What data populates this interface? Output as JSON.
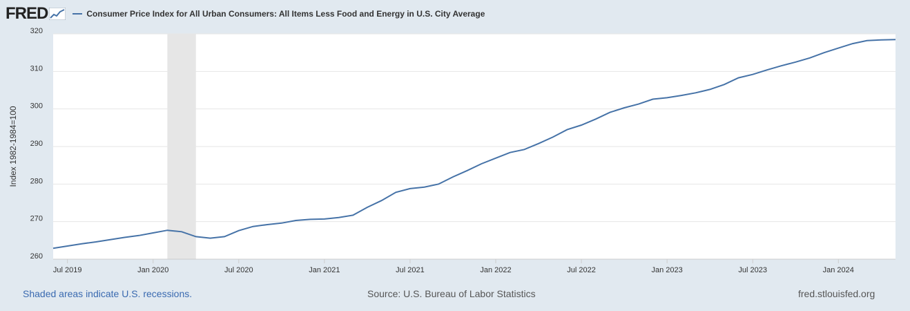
{
  "header": {
    "logo": "FRED",
    "series_label": "Consumer Price Index for All Urban Consumers: All Items Less Food and Energy in U.S. City Average"
  },
  "footer": {
    "note": "Shaded areas indicate U.S. recessions.",
    "source": "Source: U.S. Bureau of Labor Statistics",
    "site": "fred.stlouisfed.org"
  },
  "colors": {
    "line": "#4572a7",
    "recession": "#e6e6e6",
    "background": "#e1e9f0",
    "plot": "#ffffff"
  },
  "chart_data": {
    "type": "line",
    "title": "Consumer Price Index for All Urban Consumers: All Items Less Food and Energy in U.S. City Average",
    "ylabel": "Index 1982-1984=100",
    "xlabel": "",
    "ylim": [
      260,
      320
    ],
    "yticks": [
      260,
      270,
      280,
      290,
      300,
      310,
      320
    ],
    "x_start": "2019-06",
    "xticks": [
      {
        "label": "Jul 2019",
        "index": 1
      },
      {
        "label": "Jan 2020",
        "index": 7
      },
      {
        "label": "Jul 2020",
        "index": 13
      },
      {
        "label": "Jan 2021",
        "index": 19
      },
      {
        "label": "Jul 2021",
        "index": 25
      },
      {
        "label": "Jan 2022",
        "index": 31
      },
      {
        "label": "Jul 2022",
        "index": 37
      },
      {
        "label": "Jan 2023",
        "index": 43
      },
      {
        "label": "Jul 2023",
        "index": 49
      },
      {
        "label": "Jan 2024",
        "index": 55
      }
    ],
    "recessions": [
      {
        "start_index": 8,
        "end_index": 10
      }
    ],
    "grid": true,
    "series": [
      {
        "name": "Consumer Price Index for All Urban Consumers: All Items Less Food and Energy in U.S. City Average",
        "values": [
          262.9,
          263.5,
          264.1,
          264.6,
          265.2,
          265.8,
          266.3,
          267.0,
          267.7,
          267.3,
          266.0,
          265.6,
          266.0,
          267.6,
          268.7,
          269.2,
          269.6,
          270.3,
          270.6,
          270.7,
          271.1,
          271.7,
          273.8,
          275.6,
          277.8,
          278.8,
          279.2,
          280.0,
          281.9,
          283.6,
          285.4,
          286.9,
          288.4,
          289.2,
          290.8,
          292.5,
          294.5,
          295.7,
          297.3,
          299.1,
          300.3,
          301.3,
          302.6,
          303.0,
          303.6,
          304.3,
          305.2,
          306.5,
          308.3,
          309.2,
          310.4,
          311.5,
          312.5,
          313.6,
          315.0,
          316.2,
          317.4,
          318.2,
          318.4,
          318.5
        ]
      }
    ]
  }
}
